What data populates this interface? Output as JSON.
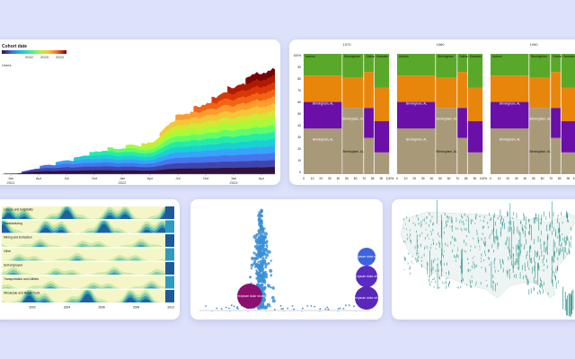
{
  "page": {
    "background": "#dde2fb"
  },
  "cards": [
    {
      "id": "stacked-area",
      "legend_title": "Cohort date",
      "legend_ticks": [
        "2022",
        "2023",
        "2024"
      ],
      "x_ticks": [
        {
          "month": "Jan",
          "year": "2021"
        },
        {
          "month": "Apr",
          "year": ""
        },
        {
          "month": "Jul",
          "year": ""
        },
        {
          "month": "Oct",
          "year": ""
        },
        {
          "month": "Jan",
          "year": "2022"
        },
        {
          "month": "Apr",
          "year": ""
        },
        {
          "month": "Jul",
          "year": ""
        },
        {
          "month": "Oct",
          "year": ""
        },
        {
          "month": "Jan",
          "year": "2023"
        },
        {
          "month": "Apr",
          "year": ""
        }
      ],
      "y_label": "Users"
    },
    {
      "id": "marimekko",
      "panels": [
        {
          "year": "1970",
          "labels": [
            "Auburn",
            "Birmingham",
            "Dothan",
            "Gadsden"
          ],
          "callout": "Birmingham, AL"
        },
        {
          "year": "1980",
          "labels": [
            "Auburn",
            "Birmingham",
            "Dothan",
            "Gadsden"
          ],
          "callout": "Birmingham, AL"
        },
        {
          "year": "1990",
          "labels": [
            "Auburn",
            "Birmingham",
            "Dothan",
            "Gadsden"
          ],
          "callout": "Birmingham, AL"
        }
      ],
      "y_ticks": [
        "100%",
        "90",
        "80",
        "70",
        "60",
        "50",
        "40",
        "30",
        "20",
        "10",
        "0"
      ],
      "x_ticks": [
        "0",
        "10",
        "20",
        "30",
        "40",
        "50",
        "60",
        "70",
        "80",
        "90",
        "100%"
      ],
      "colors": {
        "green": "#5aa82a",
        "orange": "#e8860c",
        "purple": "#6a0fa8",
        "tan": "#a89a78"
      }
    },
    {
      "id": "horizon",
      "rows": [
        "Leisure and hospitality",
        "Manufacturing",
        "Mining and Extraction",
        "Other",
        "Self-employed",
        "Transportation and Utilities",
        "Wholesale and Retail Trade"
      ],
      "x_ticks": [
        "2002",
        "2004",
        "2006",
        "2008",
        "2010"
      ]
    },
    {
      "id": "beeswarm",
      "bubbles": [
        {
          "label": "Lorem ipsum dolor sit amet"
        },
        {
          "label": "Lorem ipsum dolor sit amet"
        },
        {
          "label": "Lorem ipsum dolor sit amet"
        },
        {
          "label": "Lorem ipsum dolor sit amet"
        }
      ]
    },
    {
      "id": "us-spike-map"
    }
  ]
}
